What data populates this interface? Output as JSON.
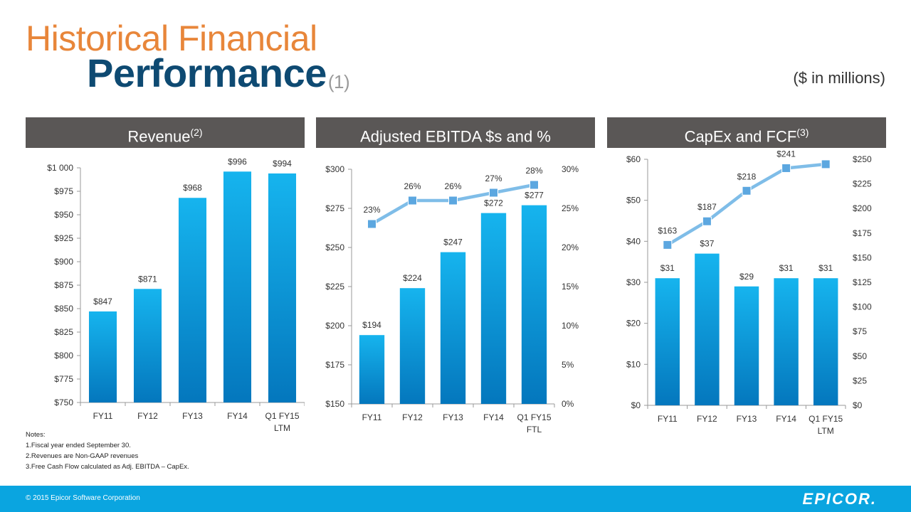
{
  "title": {
    "line1": "Historical Financial",
    "line2": "Performance",
    "sup": "(1)"
  },
  "units": "($ in millions)",
  "colors": {
    "bar_top": "#16b4ee",
    "bar_bottom": "#0477bd",
    "line": "#7fbde8",
    "marker": "#5ca7e0",
    "header": "#5a5756",
    "footer": "#0aa5e0"
  },
  "panels": [
    {
      "label": "Revenue",
      "sup": "(2)"
    },
    {
      "label": "Adjusted EBITDA $s and %",
      "sup": ""
    },
    {
      "label": "CapEx and FCF",
      "sup": "(3)"
    }
  ],
  "chart_data": [
    {
      "type": "bar",
      "title": "Revenue",
      "categories": [
        [
          "FY11"
        ],
        [
          "FY12"
        ],
        [
          "FY13"
        ],
        [
          "FY14"
        ],
        [
          "Q1 FY15",
          "LTM"
        ]
      ],
      "values": [
        847,
        871,
        968,
        996,
        994
      ],
      "value_labels": [
        "$847",
        "$871",
        "$968",
        "$996",
        "$994"
      ],
      "ylim": [
        750,
        1000
      ],
      "yticks": [
        750,
        775,
        800,
        825,
        850,
        875,
        900,
        925,
        950,
        975,
        1000
      ],
      "ytick_labels": [
        "$750",
        "$775",
        "$800",
        "$825",
        "$850",
        "$875",
        "$900",
        "$925",
        "$950",
        "$975",
        "$1 000"
      ]
    },
    {
      "type": "bar+line",
      "title": "Adjusted EBITDA $s and %",
      "categories": [
        [
          "FY11"
        ],
        [
          "FY12"
        ],
        [
          "FY13"
        ],
        [
          "FY14"
        ],
        [
          "Q1 FY15",
          "FTL"
        ]
      ],
      "values": [
        194,
        224,
        247,
        272,
        277
      ],
      "value_labels": [
        "$194",
        "$224",
        "$247",
        "$272",
        "$277"
      ],
      "ylim": [
        150,
        300
      ],
      "yticks": [
        150,
        175,
        200,
        225,
        250,
        275,
        300
      ],
      "ytick_labels": [
        "$150",
        "$175",
        "$200",
        "$225",
        "$250",
        "$275",
        "$300"
      ],
      "line_values": [
        23,
        26,
        26,
        27,
        28
      ],
      "line_labels": [
        "23%",
        "26%",
        "26%",
        "27%",
        "28%"
      ],
      "y2lim": [
        0,
        30
      ],
      "y2ticks": [
        0,
        5,
        10,
        15,
        20,
        25,
        30
      ],
      "y2tick_labels": [
        "0%",
        "5%",
        "10%",
        "15%",
        "20%",
        "25%",
        "30%"
      ]
    },
    {
      "type": "bar+line",
      "title": "CapEx and FCF",
      "categories": [
        [
          "FY11"
        ],
        [
          "FY12"
        ],
        [
          "FY13"
        ],
        [
          "FY14"
        ],
        [
          "Q1 FY15",
          "LTM"
        ]
      ],
      "values": [
        31,
        37,
        29,
        31,
        31
      ],
      "value_labels": [
        "$31",
        "$37",
        "$29",
        "$31",
        "$31"
      ],
      "ylim": [
        0,
        60
      ],
      "yticks": [
        0,
        10,
        20,
        30,
        40,
        50,
        60
      ],
      "ytick_labels": [
        "$0",
        "$10",
        "$20",
        "$30",
        "$40",
        "$50",
        "$60"
      ],
      "line_values": [
        163,
        187,
        218,
        241,
        245
      ],
      "line_labels": [
        "$163",
        "$187",
        "$218",
        "$241",
        ""
      ],
      "y2lim": [
        0,
        250
      ],
      "y2ticks": [
        0,
        25,
        50,
        75,
        100,
        125,
        150,
        175,
        200,
        225,
        250
      ],
      "y2tick_labels": [
        "$0",
        "$25",
        "$50",
        "$75",
        "$100",
        "$125",
        "$150",
        "$175",
        "$200",
        "$225",
        "$250"
      ]
    }
  ],
  "notes": {
    "heading": "Notes:",
    "items": [
      "1.Fiscal year ended September 30.",
      "2.Revenues are Non-GAAP revenues",
      "3.Free Cash Flow calculated as Adj. EBITDA – CapEx."
    ]
  },
  "footer": {
    "copyright": "© 2015 Epicor Software Corporation",
    "logo": "EPICOR."
  }
}
